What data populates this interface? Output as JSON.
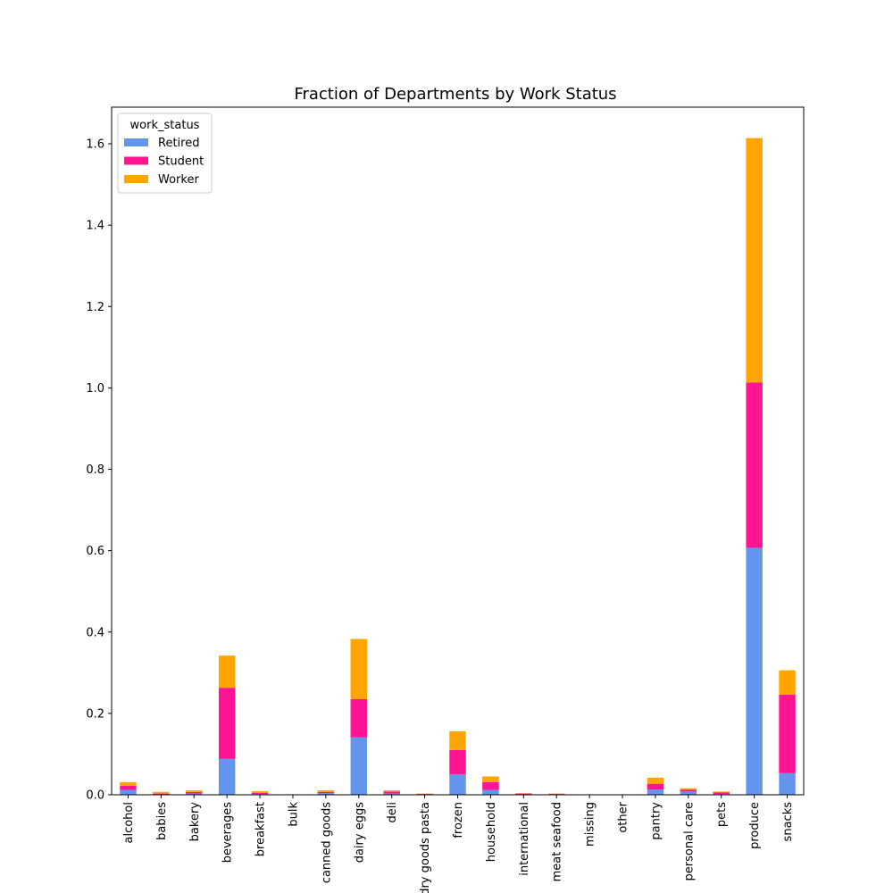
{
  "chart_data": {
    "type": "bar",
    "stacked": true,
    "title": "Fraction of Departments by Work Status",
    "xlabel": "",
    "ylabel": "",
    "ylim": [
      0,
      1.69
    ],
    "yticks": [
      0.0,
      0.2,
      0.4,
      0.6,
      0.8,
      1.0,
      1.2,
      1.4,
      1.6
    ],
    "ytick_labels": [
      "0.0",
      "0.2",
      "0.4",
      "0.6",
      "0.8",
      "1.0",
      "1.2",
      "1.4",
      "1.6"
    ],
    "grid": false,
    "legend": {
      "title": "work_status",
      "placement": "top-left"
    },
    "categories": [
      "alcohol",
      "babies",
      "bakery",
      "beverages",
      "breakfast",
      "bulk",
      "canned goods",
      "dairy eggs",
      "deli",
      "dry goods pasta",
      "frozen",
      "household",
      "international",
      "meat seafood",
      "missing",
      "other",
      "pantry",
      "personal care",
      "pets",
      "produce",
      "snacks"
    ],
    "series": [
      {
        "name": "Retired",
        "color": "#6495ED",
        "values": [
          0.012,
          0.001,
          0.003,
          0.088,
          0.002,
          0.0,
          0.004,
          0.141,
          0.003,
          0.001,
          0.05,
          0.012,
          0.001,
          0.001,
          0.0,
          0.0,
          0.013,
          0.008,
          0.002,
          0.607,
          0.053
        ]
      },
      {
        "name": "Student",
        "color": "#FF1493",
        "values": [
          0.01,
          0.002,
          0.004,
          0.175,
          0.003,
          0.0,
          0.003,
          0.094,
          0.005,
          0.001,
          0.06,
          0.019,
          0.002,
          0.001,
          0.0,
          0.0,
          0.014,
          0.004,
          0.004,
          0.406,
          0.193
        ]
      },
      {
        "name": "Worker",
        "color": "#FFA500",
        "values": [
          0.009,
          0.004,
          0.004,
          0.079,
          0.004,
          0.0,
          0.004,
          0.148,
          0.003,
          0.001,
          0.046,
          0.014,
          0.001,
          0.001,
          0.0,
          0.0,
          0.015,
          0.004,
          0.002,
          0.601,
          0.06
        ]
      }
    ]
  }
}
